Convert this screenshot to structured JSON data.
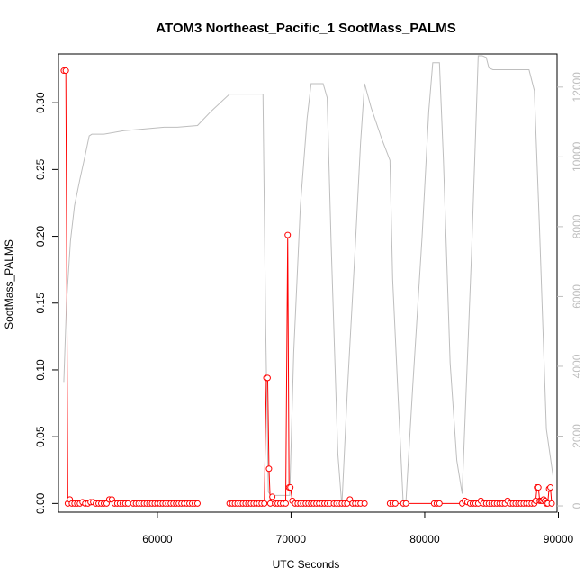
{
  "chart_data": {
    "type": "line",
    "title": "ATOM3 Northeast_Pacific_1 SootMass_PALMS",
    "xlabel": "UTC Seconds",
    "ylabel": "SootMass_PALMS",
    "xlim": [
      52600,
      89900
    ],
    "ylim_left": [
      -0.0065,
      0.3365
    ],
    "ylim_right": [
      -180,
      12950
    ],
    "x_ticks": [
      60000,
      70000,
      80000,
      90000
    ],
    "x_tick_labels": [
      "60000",
      "70000",
      "80000",
      "90000"
    ],
    "y_ticks_left": [
      0.0,
      0.05,
      0.1,
      0.15,
      0.2,
      0.25,
      0.3
    ],
    "y_tick_labels_left": [
      "0.00",
      "0.05",
      "0.10",
      "0.15",
      "0.20",
      "0.25",
      "0.30"
    ],
    "y_ticks_right": [
      0,
      2000,
      4000,
      6000,
      8000,
      10000,
      12000
    ],
    "y_tick_labels_right": [
      "0",
      "2000",
      "4000",
      "6000",
      "8000",
      "10000",
      "12000"
    ],
    "colors": {
      "soot": "#ff0000",
      "altitude": "#bebebe",
      "axis": "#000000"
    },
    "series": [
      {
        "axis": "left",
        "style": "line+points",
        "x": [
          53000,
          53150,
          53300,
          53450,
          53600,
          53800,
          54000,
          54200,
          54400,
          54600,
          54800,
          55000,
          55200,
          55400,
          55600,
          55800,
          56000,
          56200,
          56400,
          56600,
          56800,
          57000,
          57200,
          57400,
          57600,
          57800,
          58200,
          58400,
          58600,
          58800,
          59000,
          59200,
          59400,
          59600,
          59800,
          60000,
          60200,
          60400,
          60600,
          60800,
          61000,
          61200,
          61400,
          61600,
          61800,
          62000,
          62200,
          62400,
          62600,
          62800,
          63000
        ],
        "y": [
          0.324,
          0.324,
          0.0,
          0.003,
          0.0,
          0.0,
          0.0,
          0.0,
          0.001,
          0.0,
          0.0,
          0.001,
          0.001,
          0.0,
          0.0,
          0.0,
          0.0,
          0.0,
          0.003,
          0.003,
          0.0,
          0.0,
          0.0,
          0.0,
          0.0,
          0.0,
          0.0,
          0.0,
          0.0,
          0.0,
          0.0,
          0.0,
          0.0,
          0.0,
          0.0,
          0.0,
          0.0,
          0.0,
          0.0,
          0.0,
          0.0,
          0.0,
          0.0,
          0.0,
          0.0,
          0.0,
          0.0,
          0.0,
          0.0,
          0.0,
          0.0
        ]
      },
      {
        "axis": "left",
        "style": "line+points",
        "x": [
          65400,
          65600,
          65800,
          66000,
          66200,
          66400,
          66600,
          66800,
          67000,
          67200,
          67400,
          67600,
          67800,
          68000,
          68150,
          68250,
          68350,
          68450,
          68600,
          68800,
          69000,
          69200,
          69400,
          69600,
          69750,
          69850,
          69950,
          70100,
          70300,
          70500,
          70700,
          70900,
          71100,
          71300,
          71500,
          71700,
          71900,
          72100,
          72300,
          72500,
          72700,
          72900,
          73200,
          73400,
          73600,
          73800,
          74000,
          74200,
          74400,
          74600,
          74800,
          75000,
          75200,
          75500
        ],
        "y": [
          0.0,
          0.0,
          0.0,
          0.0,
          0.0,
          0.0,
          0.0,
          0.0,
          0.0,
          0.0,
          0.0,
          0.0,
          0.0,
          0.0,
          0.094,
          0.094,
          0.026,
          0.0,
          0.005,
          0.0,
          0.0,
          0.0,
          0.0,
          0.0,
          0.201,
          0.012,
          0.012,
          0.002,
          0.0,
          0.0,
          0.0,
          0.0,
          0.0,
          0.0,
          0.0,
          0.0,
          0.0,
          0.0,
          0.0,
          0.0,
          0.0,
          0.0,
          0.0,
          0.0,
          0.0,
          0.0,
          0.0,
          0.0,
          0.003,
          0.0,
          0.0,
          0.0,
          0.0,
          0.0
        ]
      },
      {
        "axis": "left",
        "style": "line+points",
        "x": [
          77400,
          77600,
          77800,
          78400,
          78600,
          80700,
          80900,
          81100,
          82800,
          83000,
          83200,
          83400,
          83600,
          83800,
          84000,
          84200,
          84400,
          84600,
          84800,
          85000,
          85200,
          85400,
          85600,
          85800,
          86000,
          86200,
          86400,
          86600,
          86800,
          87000,
          87200,
          87400,
          87600,
          87800,
          88000,
          88200,
          88300,
          88400,
          88500,
          88600,
          88700,
          88800,
          88900,
          89000,
          89100,
          89200,
          89300,
          89400,
          89500
        ],
        "y": [
          0.0,
          0.0,
          0.0,
          0.0,
          0.0,
          0.0,
          0.0,
          0.0,
          0.0,
          0.002,
          0.001,
          0.0,
          0.0,
          0.0,
          0.0,
          0.002,
          0.0,
          0.0,
          0.0,
          0.0,
          0.0,
          0.0,
          0.0,
          0.0,
          0.0,
          0.002,
          0.0,
          0.0,
          0.0,
          0.0,
          0.0,
          0.0,
          0.0,
          0.0,
          0.0,
          0.0,
          0.002,
          0.012,
          0.012,
          0.002,
          0.002,
          0.002,
          0.003,
          0.002,
          0.0,
          0.0,
          0.011,
          0.012,
          0.0
        ]
      },
      {
        "axis": "right",
        "style": "line",
        "x": [
          53000,
          53200,
          53500,
          53800,
          54200,
          54600,
          54900,
          55100,
          56000,
          57500,
          59000,
          60500,
          61500,
          63000,
          64000,
          65400,
          66000,
          67500,
          67900,
          68100,
          68300,
          68500,
          69000,
          69500,
          69900,
          70200,
          70700,
          71200,
          71500,
          72000,
          72400,
          72700,
          73000,
          73500,
          73800,
          74200,
          74800,
          75200,
          75500,
          76000,
          76800,
          77400,
          77600,
          78000,
          78400,
          78600,
          79100,
          79800,
          80300,
          80600,
          80800,
          81100,
          81400,
          81900,
          82400,
          82800,
          83100,
          83500,
          83800,
          84000,
          84300,
          84600,
          84800,
          85100,
          86200,
          87200,
          87800,
          88200,
          88600,
          89100,
          89600
        ],
        "y": [
          3550,
          5800,
          7600,
          8600,
          9350,
          10050,
          10600,
          10650,
          10650,
          10750,
          10800,
          10850,
          10850,
          10900,
          11300,
          11800,
          11800,
          11800,
          11800,
          5200,
          400,
          300,
          300,
          300,
          300,
          4400,
          8600,
          11100,
          12100,
          12100,
          12100,
          11700,
          7500,
          1500,
          0,
          3200,
          7400,
          10400,
          12100,
          11400,
          10500,
          9900,
          6500,
          3200,
          0,
          150,
          3400,
          7700,
          11300,
          12700,
          12700,
          12700,
          9900,
          4100,
          1300,
          350,
          3300,
          7200,
          10600,
          12900,
          12900,
          12850,
          12550,
          12500,
          12500,
          12500,
          12500,
          11900,
          7800,
          2200,
          850
        ]
      }
    ]
  }
}
